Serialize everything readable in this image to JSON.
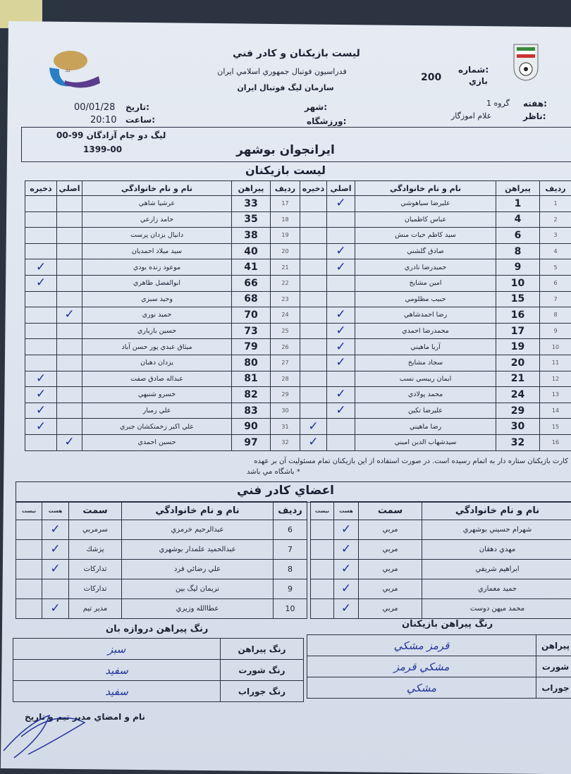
{
  "header": {
    "title": "ليست بازيكنان و كادر فني",
    "federation": "فدراسيون فوتبال جمهوري اسلامي ايران",
    "organization": "سازمان ليگ فوتبال ايران",
    "match_number_label": "شماره:",
    "match_number_sub": "بازي",
    "match_number": "200",
    "week_label": "هفته:",
    "week_value": "گروه 1",
    "observer_label": "ناظر:",
    "observer_value": "غلام اموزگار",
    "city_label": "شهر:",
    "stadium_label": "ورزشگاه:",
    "date_label": "تاريخ:",
    "date_value": "00/01/28",
    "time_label": "ساعت:",
    "time_value": "20:10",
    "league": "ليگ دو جام آزادگان 99-00",
    "season": "1399-00",
    "team": "ايرانجوان بوشهر",
    "players_title": "ليست بازيكنان"
  },
  "players_columns": {
    "row": "رديف",
    "shirt": "پيراهن",
    "name": "نام و نام خانوادگي",
    "main": "اصلي",
    "reserve": "ذخيره"
  },
  "players_right": [
    {
      "row": "1",
      "shirt": "1",
      "name": "عليرضا سياهوشي",
      "main": true,
      "reserve": false
    },
    {
      "row": "2",
      "shirt": "4",
      "name": "عباس كاظميان",
      "main": false,
      "reserve": false
    },
    {
      "row": "3",
      "shirt": "6",
      "name": "سيد كاظم حيات منش",
      "main": false,
      "reserve": false
    },
    {
      "row": "4",
      "shirt": "8",
      "name": "صادق گلشني",
      "main": true,
      "reserve": false
    },
    {
      "row": "5",
      "shirt": "9",
      "name": "حميدرضا نادري",
      "main": true,
      "reserve": false
    },
    {
      "row": "6",
      "shirt": "10",
      "name": "امين مشايخ",
      "main": false,
      "reserve": false
    },
    {
      "row": "7",
      "shirt": "15",
      "name": "حبيب مظلومي",
      "main": false,
      "reserve": false
    },
    {
      "row": "8",
      "shirt": "16",
      "name": "رضا احمدشاهي",
      "main": true,
      "reserve": false
    },
    {
      "row": "9",
      "shirt": "17",
      "name": "محمدرضا احمدي",
      "main": true,
      "reserve": false
    },
    {
      "row": "10",
      "shirt": "19",
      "name": "آريا ماهيني",
      "main": true,
      "reserve": false
    },
    {
      "row": "11",
      "shirt": "20",
      "name": "سجاد مشايخ",
      "main": true,
      "reserve": false
    },
    {
      "row": "12",
      "shirt": "21",
      "name": "ايمان رييسي نسب",
      "main": false,
      "reserve": false
    },
    {
      "row": "13",
      "shirt": "24",
      "name": "محمد پولادي",
      "main": true,
      "reserve": false
    },
    {
      "row": "14",
      "shirt": "29",
      "name": "عليرضا تكين",
      "main": true,
      "reserve": false
    },
    {
      "row": "15",
      "shirt": "30",
      "name": "رضا ماهيني",
      "main": false,
      "reserve": true
    },
    {
      "row": "16",
      "shirt": "32",
      "name": "سيدشهاب الدين اميني",
      "main": false,
      "reserve": true
    }
  ],
  "players_left": [
    {
      "row": "17",
      "shirt": "33",
      "name": "عرشيا شاهي",
      "main": false,
      "reserve": false
    },
    {
      "row": "18",
      "shirt": "35",
      "name": "حامد زارعي",
      "main": false,
      "reserve": false
    },
    {
      "row": "19",
      "shirt": "38",
      "name": "دانيال يزدان پرست",
      "main": false,
      "reserve": false
    },
    {
      "row": "20",
      "shirt": "40",
      "name": "سيد ميلاد احمديان",
      "main": false,
      "reserve": false
    },
    {
      "row": "21",
      "shirt": "41",
      "name": "موعود زنده بودي",
      "main": false,
      "reserve": true
    },
    {
      "row": "22",
      "shirt": "66",
      "name": "ابوالفضل طاهري",
      "main": false,
      "reserve": true
    },
    {
      "row": "23",
      "shirt": "68",
      "name": "وحيد سبزي",
      "main": false,
      "reserve": false
    },
    {
      "row": "24",
      "shirt": "70",
      "name": "حميد نوري",
      "main": true,
      "reserve": false
    },
    {
      "row": "25",
      "shirt": "73",
      "name": "حسين بازياري",
      "main": false,
      "reserve": false
    },
    {
      "row": "26",
      "shirt": "79",
      "name": "ميثاق عبدي پور حسن آباد",
      "main": false,
      "reserve": false
    },
    {
      "row": "27",
      "shirt": "80",
      "name": "يزدان دهبان",
      "main": false,
      "reserve": false
    },
    {
      "row": "28",
      "shirt": "81",
      "name": "عبداله صادق صفت",
      "main": false,
      "reserve": true
    },
    {
      "row": "29",
      "shirt": "82",
      "name": "خسرو شنبهي",
      "main": false,
      "reserve": true
    },
    {
      "row": "30",
      "shirt": "83",
      "name": "علي رمبار",
      "main": false,
      "reserve": true
    },
    {
      "row": "31",
      "shirt": "90",
      "name": "علي اكبر زحمتكشان جبري",
      "main": false,
      "reserve": true
    },
    {
      "row": "32",
      "shirt": "97",
      "name": "حسين احمدي",
      "main": true,
      "reserve": false
    }
  ],
  "note": "كارت بازيكنان ستاره دار به اتمام رسيده است. در صورت استفاده از اين بازيكنان تمام مسئوليت آن بر عهده",
  "note2": "* باشگاه مي باشد",
  "staff": {
    "title": "اعضاي كادر فني",
    "columns": {
      "row": "رديف",
      "name": "نام و نام خانوادگي",
      "role": "سمت",
      "present": "هست",
      "absent": "نيست"
    },
    "right": [
      {
        "name": "شهرام حسيني بوشهري",
        "role": "مربي",
        "present": true
      },
      {
        "name": "مهدي دهقان",
        "role": "مربي",
        "present": true
      },
      {
        "name": "ابراهيم شريفي",
        "role": "مربي",
        "present": true
      },
      {
        "name": "حميد معماري",
        "role": "مربي",
        "present": true
      },
      {
        "name": "محمد ميهن دوست",
        "role": "مربي",
        "present": true
      }
    ],
    "left": [
      {
        "row": "6",
        "name": "عبدالرحيم خرمزي",
        "role": "سرمربي",
        "present": true
      },
      {
        "row": "7",
        "name": "عبدالحميد علمدار بوشهري",
        "role": "پزشك",
        "present": true
      },
      {
        "row": "8",
        "name": "علي رضائي فرد",
        "role": "تداركات",
        "present": true
      },
      {
        "row": "9",
        "name": "نريمان ليگ بين",
        "role": "تداركات",
        "present": false
      },
      {
        "row": "10",
        "name": "عطاالله وزيري",
        "role": "مدير تيم",
        "present": true
      }
    ]
  },
  "colors": {
    "players_title": "رنگ پيراهن بازيكنان",
    "gk_title": "رنگ پيراهن دروازه بان",
    "labels": [
      "رنگ پيراهن",
      "رنگ شورت",
      "رنگ جوراب"
    ],
    "right_labels": [
      "پيراهن",
      "شورت",
      "جوراب"
    ],
    "players_values": [
      "قرمز مشكي",
      "مشكي قرمز",
      "مشكي"
    ],
    "gk_values": [
      "سبز",
      "سفيد",
      "سفيد"
    ]
  },
  "signature_label": "نام و امضاي مدير تيم و تاريخ",
  "check_mark": "✓",
  "accent_ink": "#22339a"
}
